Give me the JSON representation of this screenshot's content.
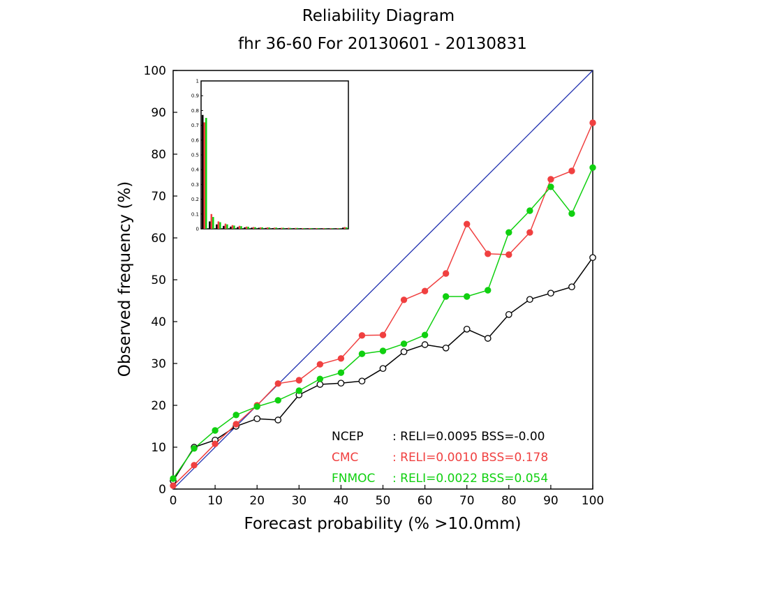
{
  "title": "Reliability Diagram",
  "subtitle": "fhr 36-60 For 20130601 - 20130831",
  "chart_data": {
    "type": "line",
    "xlabel": "Forecast probability (% >10.0mm)",
    "ylabel": "Observed frequency (%)",
    "xlim": [
      0,
      100
    ],
    "ylim": [
      0,
      100
    ],
    "x_ticks": [
      "0",
      "10",
      "20",
      "30",
      "40",
      "50",
      "60",
      "70",
      "80",
      "90",
      "100"
    ],
    "y_ticks": [
      "0",
      "10",
      "20",
      "30",
      "40",
      "50",
      "60",
      "70",
      "80",
      "90",
      "100"
    ],
    "x": [
      0,
      5,
      10,
      15,
      20,
      25,
      30,
      35,
      40,
      45,
      50,
      55,
      60,
      65,
      70,
      75,
      80,
      85,
      90,
      95,
      100
    ],
    "diagonal_color": "#2030b0",
    "series": [
      {
        "name": "NCEP",
        "color": "#000000",
        "marker": "open",
        "values": [
          2,
          10,
          11.7,
          15,
          16.8,
          16.5,
          22.5,
          25,
          25.3,
          25.8,
          28.8,
          32.8,
          34.5,
          33.7,
          38.2,
          36,
          41.7,
          45.3,
          46.8,
          48.3,
          55.3
        ],
        "stats": ": RELI=0.0095 BSS=-0.00"
      },
      {
        "name": "CMC",
        "color": "#f04040",
        "marker": "filled",
        "values": [
          0.8,
          5.7,
          10.8,
          15.5,
          20,
          25.2,
          26,
          29.8,
          31.2,
          36.7,
          36.8,
          45.2,
          47.3,
          51.5,
          63.3,
          56.2,
          56,
          61.3,
          74,
          76,
          87.5
        ],
        "stats": ": RELI=0.0010 BSS=0.178"
      },
      {
        "name": "FNMOC",
        "color": "#10d010",
        "marker": "filled",
        "values": [
          2.5,
          9.7,
          14,
          17.7,
          19.7,
          21.2,
          23.5,
          26.3,
          27.8,
          32.3,
          33,
          34.7,
          36.8,
          46,
          46,
          47.5,
          61.3,
          66.5,
          72.2,
          65.8,
          76.8
        ],
        "stats": ": RELI=0.0022 BSS=0.054"
      }
    ],
    "inset": {
      "type": "bar",
      "ylim": [
        0,
        1
      ],
      "y_ticks": [
        "0",
        "0.1",
        "0.2",
        "0.3",
        "0.4",
        "0.5",
        "0.6",
        "0.7",
        "0.8",
        "0.9",
        "1"
      ],
      "series": [
        {
          "name": "NCEP",
          "color": "#000000",
          "values": [
            0.77,
            0.05,
            0.03,
            0.02,
            0.015,
            0.012,
            0.01,
            0.008,
            0.007,
            0.006,
            0.005,
            0.005,
            0.004,
            0.004,
            0.004,
            0.003,
            0.003,
            0.003,
            0.003,
            0.003,
            0.008
          ]
        },
        {
          "name": "CMC",
          "color": "#f04040",
          "values": [
            0.72,
            0.1,
            0.05,
            0.035,
            0.025,
            0.02,
            0.015,
            0.012,
            0.01,
            0.01,
            0.008,
            0.007,
            0.007,
            0.006,
            0.005,
            0.005,
            0.005,
            0.005,
            0.004,
            0.004,
            0.012
          ]
        },
        {
          "name": "FNMOC",
          "color": "#10d010",
          "values": [
            0.75,
            0.08,
            0.045,
            0.03,
            0.022,
            0.018,
            0.014,
            0.011,
            0.01,
            0.009,
            0.008,
            0.007,
            0.006,
            0.006,
            0.005,
            0.005,
            0.005,
            0.004,
            0.004,
            0.004,
            0.01
          ]
        }
      ]
    }
  }
}
